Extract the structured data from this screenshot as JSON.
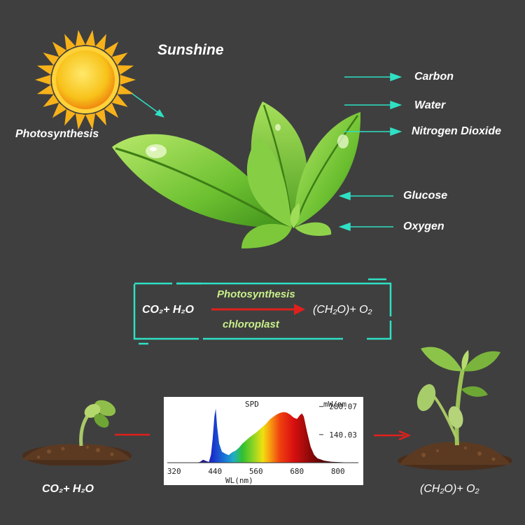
{
  "title": "Sunshine",
  "labels": {
    "photosynthesis": "Photosynthesis",
    "carbon": "Carbon",
    "water": "Water",
    "nitrogen_dioxide": "Nitrogen Dioxide",
    "glucose": "Glucose",
    "oxygen": "Oxygen"
  },
  "equation": {
    "reactants": "CO₂+ H₂O",
    "above_arrow": "Photosynthesis",
    "below_arrow": "chloroplast",
    "products": "(CH₂O)+ O₂"
  },
  "bottom": {
    "left_caption": "CO₂+ H₂O",
    "right_caption": "(CH₂O)+ O₂"
  },
  "colors": {
    "background": "#3f3f3f",
    "teal": "#2fe0c4",
    "arrow_red": "#e0201c",
    "leaf_green": "#7cc83a",
    "sun_yellow": "#f7c21a"
  },
  "chart_data": {
    "type": "area",
    "title": "SPD",
    "unit_label": "mW/nm",
    "xlabel": "WL(nm)",
    "ylabel": "",
    "x_ticks": [
      320,
      440,
      560,
      680,
      800
    ],
    "y_ticks": [
      280.07,
      140.03
    ],
    "xlim": [
      300,
      860
    ],
    "ylim": [
      0,
      300
    ],
    "grid": false,
    "series": [
      {
        "x": [
          300,
          380,
          395,
          405,
          415,
          422,
          428,
          433,
          438,
          442,
          446,
          452,
          460,
          470,
          480,
          490,
          500,
          510,
          520,
          530,
          540,
          550,
          560,
          570,
          580,
          590,
          600,
          610,
          620,
          630,
          640,
          650,
          660,
          670,
          680,
          690,
          695,
          700,
          710,
          720,
          730,
          740,
          760,
          780,
          800,
          830,
          850
        ],
        "y": [
          0,
          0,
          3,
          15,
          8,
          4,
          40,
          120,
          230,
          270,
          180,
          95,
          55,
          45,
          38,
          52,
          60,
          75,
          95,
          110,
          125,
          138,
          150,
          165,
          180,
          195,
          215,
          228,
          240,
          248,
          252,
          250,
          240,
          225,
          218,
          240,
          245,
          230,
          150,
          80,
          40,
          22,
          10,
          5,
          3,
          1,
          0
        ]
      }
    ]
  }
}
